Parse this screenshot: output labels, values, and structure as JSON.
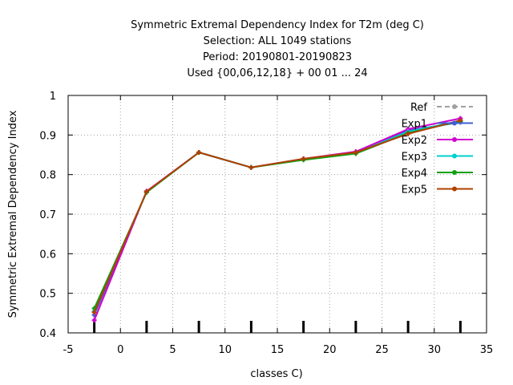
{
  "chart_data": {
    "type": "line",
    "title_lines": [
      "Symmetric Extremal Dependency Index  for T2m (deg C)",
      "Selection: ALL    1049 stations",
      "Period: 20190801-20190823",
      "Used {00,06,12,18} + 00 01 ... 24"
    ],
    "xlabel": "classes C)",
    "ylabel": "Symmetric Extremal Dependency Index",
    "xlim": [
      -5,
      35
    ],
    "ylim": [
      0.4,
      1.0
    ],
    "xticks": [
      -5,
      0,
      5,
      10,
      15,
      20,
      25,
      30,
      35
    ],
    "yticks": [
      0.4,
      0.5,
      0.6,
      0.7,
      0.8,
      0.9,
      1.0
    ],
    "xtick_labels": [
      "-5",
      "0",
      "5",
      "10",
      "15",
      "20",
      "25",
      "30",
      "35"
    ],
    "ytick_labels": [
      "0.4",
      "0.5",
      "0.6",
      "0.7",
      "0.8",
      "0.9",
      "1"
    ],
    "grid": true,
    "legend_position": "top-right",
    "x": [
      -2.5,
      2.5,
      7.5,
      12.5,
      17.5,
      22.5,
      27.5,
      32.5
    ],
    "series": [
      {
        "name": "Ref",
        "color": "#a0a0a0",
        "dashed": true,
        "values": [
          null,
          null,
          null,
          null,
          null,
          null,
          null,
          null
        ]
      },
      {
        "name": "Exp1",
        "color": "#4060d0",
        "dashed": false,
        "values": [
          0.445,
          0.757,
          0.856,
          0.818,
          0.839,
          0.856,
          0.912,
          0.932
        ]
      },
      {
        "name": "Exp2",
        "color": "#d000d0",
        "dashed": false,
        "values": [
          0.432,
          0.758,
          0.856,
          0.818,
          0.84,
          0.858,
          0.915,
          0.942
        ]
      },
      {
        "name": "Exp3",
        "color": "#00d0d0",
        "dashed": false,
        "values": [
          0.455,
          0.756,
          0.856,
          0.818,
          0.838,
          0.855,
          0.908,
          0.936
        ]
      },
      {
        "name": "Exp4",
        "color": "#10a010",
        "dashed": false,
        "values": [
          0.462,
          0.755,
          0.856,
          0.818,
          0.837,
          0.853,
          0.905,
          0.935
        ]
      },
      {
        "name": "Exp5",
        "color": "#b04000",
        "dashed": false,
        "values": [
          0.452,
          0.757,
          0.856,
          0.818,
          0.84,
          0.856,
          0.903,
          0.937
        ]
      }
    ],
    "bottom_bars_x": [
      -2.5,
      2.5,
      7.5,
      12.5,
      17.5,
      22.5,
      27.5,
      32.5
    ]
  }
}
